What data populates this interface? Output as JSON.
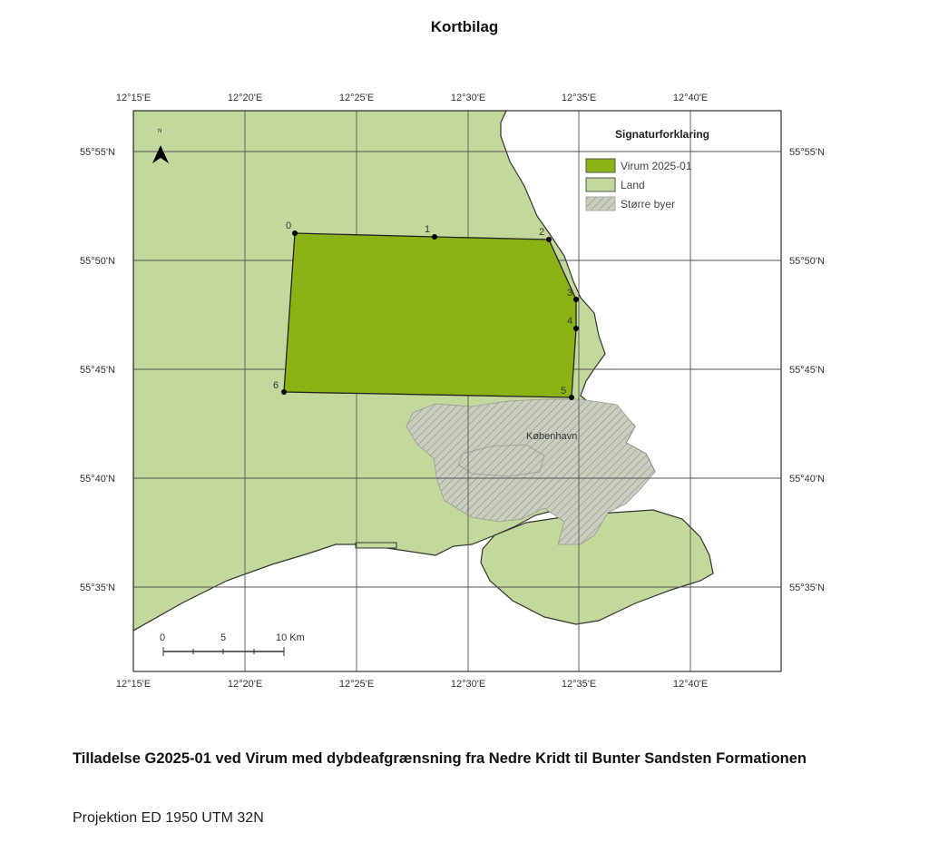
{
  "title": "Kortbilag",
  "map": {
    "lon_labels": [
      "12°15'E",
      "12°20'E",
      "12°25'E",
      "12°30'E",
      "12°35'E",
      "12°40'E"
    ],
    "lat_labels": [
      "55°55'N",
      "55°50'N",
      "55°45'N",
      "55°40'N",
      "55°35'N"
    ],
    "north_label": "N",
    "city_label": "København",
    "vertex_labels": [
      "0",
      "1",
      "2",
      "3",
      "4",
      "5",
      "6"
    ],
    "scale_bar": {
      "labels": [
        "0",
        "5",
        "10 Km"
      ]
    },
    "colors": {
      "license_area": "#8ab414",
      "land": "#c2d99b",
      "water": "#ffffff",
      "cities_hatch": "#b5b5b0"
    }
  },
  "legend": {
    "title": "Signaturforklaring",
    "items": [
      {
        "label": "Virum 2025-01",
        "symbol": "license-area"
      },
      {
        "label": "Land",
        "symbol": "land"
      },
      {
        "label": "Større byer",
        "symbol": "hatched"
      }
    ]
  },
  "caption": "Tilladelse G2025-01 ved Virum med dybdeafgrænsning fra Nedre Kridt til Bunter Sandsten Formationen",
  "projection": "Projektion ED 1950 UTM 32N"
}
